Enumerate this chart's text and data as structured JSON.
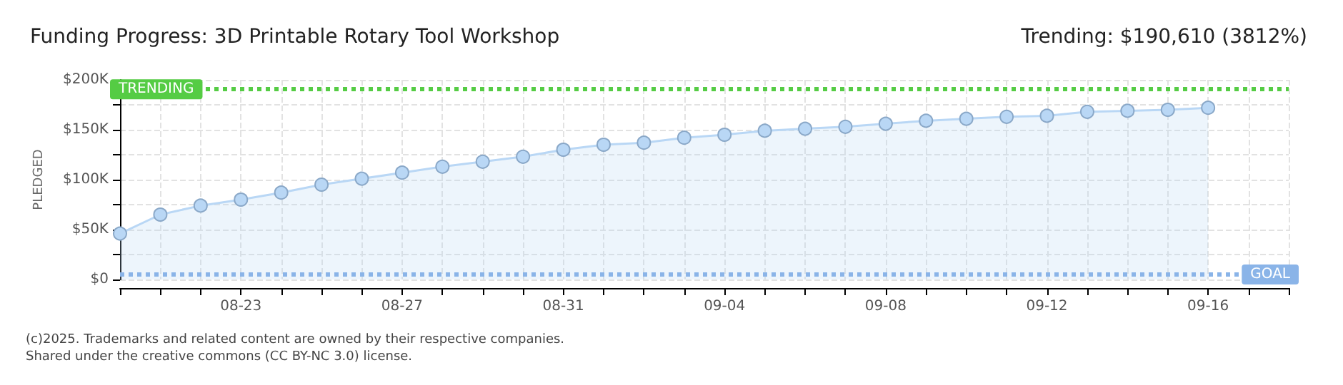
{
  "chart_data": {
    "type": "area",
    "title": "Funding Progress: 3D Printable Rotary Tool Workshop",
    "subtitle": "Trending: $190,610 (3812%)",
    "ylabel": "PLEDGED",
    "x": [
      "2025-08-20",
      "2025-08-21",
      "2025-08-22",
      "2025-08-23",
      "2025-08-24",
      "2025-08-25",
      "2025-08-26",
      "2025-08-27",
      "2025-08-28",
      "2025-08-29",
      "2025-08-30",
      "2025-08-31",
      "2025-09-01",
      "2025-09-02",
      "2025-09-03",
      "2025-09-04",
      "2025-09-05",
      "2025-09-06",
      "2025-09-07",
      "2025-09-08",
      "2025-09-09",
      "2025-09-10",
      "2025-09-11",
      "2025-09-12",
      "2025-09-13",
      "2025-09-14",
      "2025-09-15",
      "2025-09-16"
    ],
    "series": [
      {
        "color": "#b9d7f5",
        "values": [
          46000,
          65000,
          74000,
          80000,
          87000,
          95000,
          101000,
          107000,
          113000,
          118000,
          123000,
          130000,
          135000,
          137000,
          142000,
          145000,
          149000,
          151000,
          153000,
          156000,
          159000,
          161000,
          163000,
          164000,
          168000,
          169000,
          170000,
          172000
        ]
      }
    ],
    "xlim": [
      "2025-08-20",
      "2025-09-18"
    ],
    "xticks": [
      {
        "value": "2025-08-20",
        "label": null
      },
      {
        "value": "2025-08-21",
        "label": null
      },
      {
        "value": "2025-08-22",
        "label": null
      },
      {
        "value": "2025-08-23",
        "label": "08-23"
      },
      {
        "value": "2025-08-24",
        "label": null
      },
      {
        "value": "2025-08-25",
        "label": null
      },
      {
        "value": "2025-08-26",
        "label": null
      },
      {
        "value": "2025-08-27",
        "label": "08-27"
      },
      {
        "value": "2025-08-28",
        "label": null
      },
      {
        "value": "2025-08-29",
        "label": null
      },
      {
        "value": "2025-08-30",
        "label": null
      },
      {
        "value": "2025-08-31",
        "label": "08-31"
      },
      {
        "value": "2025-09-01",
        "label": null
      },
      {
        "value": "2025-09-02",
        "label": null
      },
      {
        "value": "2025-09-03",
        "label": null
      },
      {
        "value": "2025-09-04",
        "label": "09-04"
      },
      {
        "value": "2025-09-05",
        "label": null
      },
      {
        "value": "2025-09-06",
        "label": null
      },
      {
        "value": "2025-09-07",
        "label": null
      },
      {
        "value": "2025-09-08",
        "label": "09-08"
      },
      {
        "value": "2025-09-09",
        "label": null
      },
      {
        "value": "2025-09-10",
        "label": null
      },
      {
        "value": "2025-09-11",
        "label": null
      },
      {
        "value": "2025-09-12",
        "label": "09-12"
      },
      {
        "value": "2025-09-13",
        "label": null
      },
      {
        "value": "2025-09-14",
        "label": null
      },
      {
        "value": "2025-09-15",
        "label": null
      },
      {
        "value": "2025-09-16",
        "label": "09-16"
      },
      {
        "value": "2025-09-17",
        "label": null
      },
      {
        "value": "2025-09-18",
        "label": null
      }
    ],
    "ylim": [
      0,
      200000
    ],
    "yticks": [
      {
        "value": 0,
        "label": "$0"
      },
      {
        "value": 25000,
        "label": null
      },
      {
        "value": 50000,
        "label": "$50K"
      },
      {
        "value": 75000,
        "label": null
      },
      {
        "value": 100000,
        "label": "$100K"
      },
      {
        "value": 125000,
        "label": null
      },
      {
        "value": 150000,
        "label": "$150K"
      },
      {
        "value": 175000,
        "label": null
      },
      {
        "value": 200000,
        "label": "$200K"
      }
    ],
    "ref_lines": [
      {
        "axis": "y",
        "value": 190610,
        "label": "TRENDING",
        "color": "#55cc44",
        "line_style": "dotted"
      },
      {
        "axis": "y",
        "value": 5000,
        "label": "GOAL",
        "color": "#8ab4e8",
        "line_style": "dotted"
      }
    ],
    "grid": true,
    "marker": "circle",
    "annotations": [
      "(c)2025. Trademarks and related content are owned by their respective companies.",
      "Shared under the creative commons (CC BY-NC 3.0) license."
    ]
  }
}
